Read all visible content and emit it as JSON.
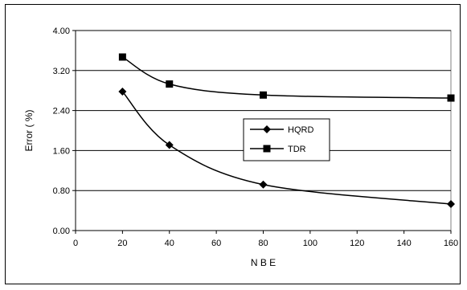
{
  "chart_data": {
    "type": "line",
    "title": "",
    "xlabel": "N B E",
    "ylabel": "Error  ( %)",
    "xlim": [
      0,
      160
    ],
    "ylim": [
      0,
      4
    ],
    "x_ticks": [
      "0",
      "20",
      "40",
      "60",
      "80",
      "100",
      "120",
      "140",
      "160"
    ],
    "y_ticks": [
      "0.00",
      "0.80",
      "1.60",
      "2.40",
      "3.20",
      "4.00"
    ],
    "grid": "horizontal",
    "smoothed": true,
    "legend_position": "center-right",
    "series": [
      {
        "name": "HQRD",
        "marker": "diamond",
        "color": "#000000",
        "x": [
          20,
          40,
          80,
          160
        ],
        "y": [
          2.78,
          1.71,
          0.92,
          0.53
        ]
      },
      {
        "name": "TDR",
        "marker": "square",
        "color": "#000000",
        "x": [
          20,
          40,
          80,
          160
        ],
        "y": [
          3.47,
          2.93,
          2.71,
          2.65
        ]
      }
    ]
  }
}
